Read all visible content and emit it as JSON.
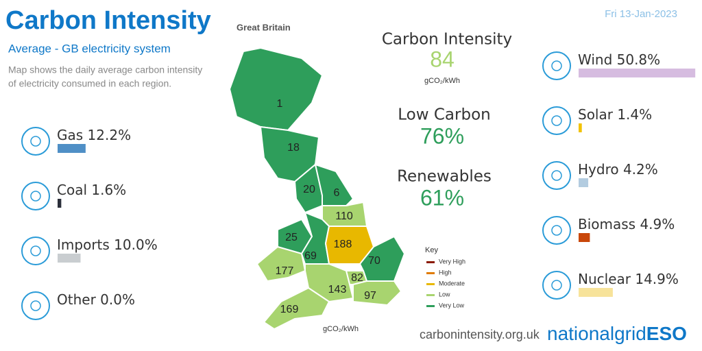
{
  "header": {
    "title": "Carbon Intensity",
    "region": "Great Britain",
    "date": "Fri 13-Jan-2023",
    "subtitle": "Average - GB electricity system",
    "description": [
      "Map shows the daily average carbon intensity",
      "of electricity consumed in each region."
    ]
  },
  "fuels_left": [
    {
      "name": "Gas",
      "value": 12.2,
      "label": "12.2%",
      "color": "#4f8fc6"
    },
    {
      "name": "Coal",
      "value": 1.6,
      "label": "1.6%",
      "color": "#2b2f3a"
    },
    {
      "name": "Imports",
      "value": 10.0,
      "label": "10.0%",
      "color": "#c9cdd0"
    },
    {
      "name": "Other",
      "value": 0.0,
      "label": "0.0%",
      "color": "#999999"
    }
  ],
  "fuels_right": [
    {
      "name": "Wind",
      "value": 50.8,
      "label": "50.8%",
      "color": "#d6bce0"
    },
    {
      "name": "Solar",
      "value": 1.4,
      "label": "1.4%",
      "color": "#f2c200"
    },
    {
      "name": "Hydro",
      "value": 4.2,
      "label": "4.2%",
      "color": "#b3cce0"
    },
    {
      "name": "Biomass",
      "value": 4.9,
      "label": "4.9%",
      "color": "#c9470a"
    },
    {
      "name": "Nuclear",
      "value": 14.9,
      "label": "14.9%",
      "color": "#f7e39a"
    }
  ],
  "summary": {
    "intensity_title": "Carbon Intensity",
    "intensity": 84,
    "unit": "gCO₂/kWh",
    "low_carbon_title": "Low Carbon",
    "low_carbon": {
      "value": 76,
      "label": "76%"
    },
    "renewables_title": "Renewables",
    "renewables": {
      "value": 61,
      "label": "61%"
    }
  },
  "regions": [
    {
      "value": 1,
      "color": "#2e9e5b"
    },
    {
      "value": 18,
      "color": "#2e9e5b"
    },
    {
      "value": 20,
      "color": "#2e9e5b"
    },
    {
      "value": 6,
      "color": "#2e9e5b"
    },
    {
      "value": 110,
      "color": "#a8d46f"
    },
    {
      "value": 25,
      "color": "#2e9e5b"
    },
    {
      "value": 69,
      "color": "#2e9e5b"
    },
    {
      "value": 188,
      "color": "#e8b800"
    },
    {
      "value": 70,
      "color": "#2e9e5b"
    },
    {
      "value": 177,
      "color": "#a8d46f"
    },
    {
      "value": 82,
      "color": "#a8d46f"
    },
    {
      "value": 143,
      "color": "#a8d46f"
    },
    {
      "value": 97,
      "color": "#a8d46f"
    },
    {
      "value": 169,
      "color": "#a8d46f"
    }
  ],
  "key": {
    "title": "Key",
    "items": [
      {
        "label": "Very High",
        "color": "#8b1a00"
      },
      {
        "label": "High",
        "color": "#e07b00"
      },
      {
        "label": "Moderate",
        "color": "#e8b800"
      },
      {
        "label": "Low",
        "color": "#a8d46f"
      },
      {
        "label": "Very Low",
        "color": "#2e9e5b"
      }
    ],
    "unit": "gCO₂/kWh"
  },
  "footer": {
    "url": "carbonintensity.org.uk",
    "logo_a": "nationalgrid",
    "logo_b": "ESO"
  }
}
